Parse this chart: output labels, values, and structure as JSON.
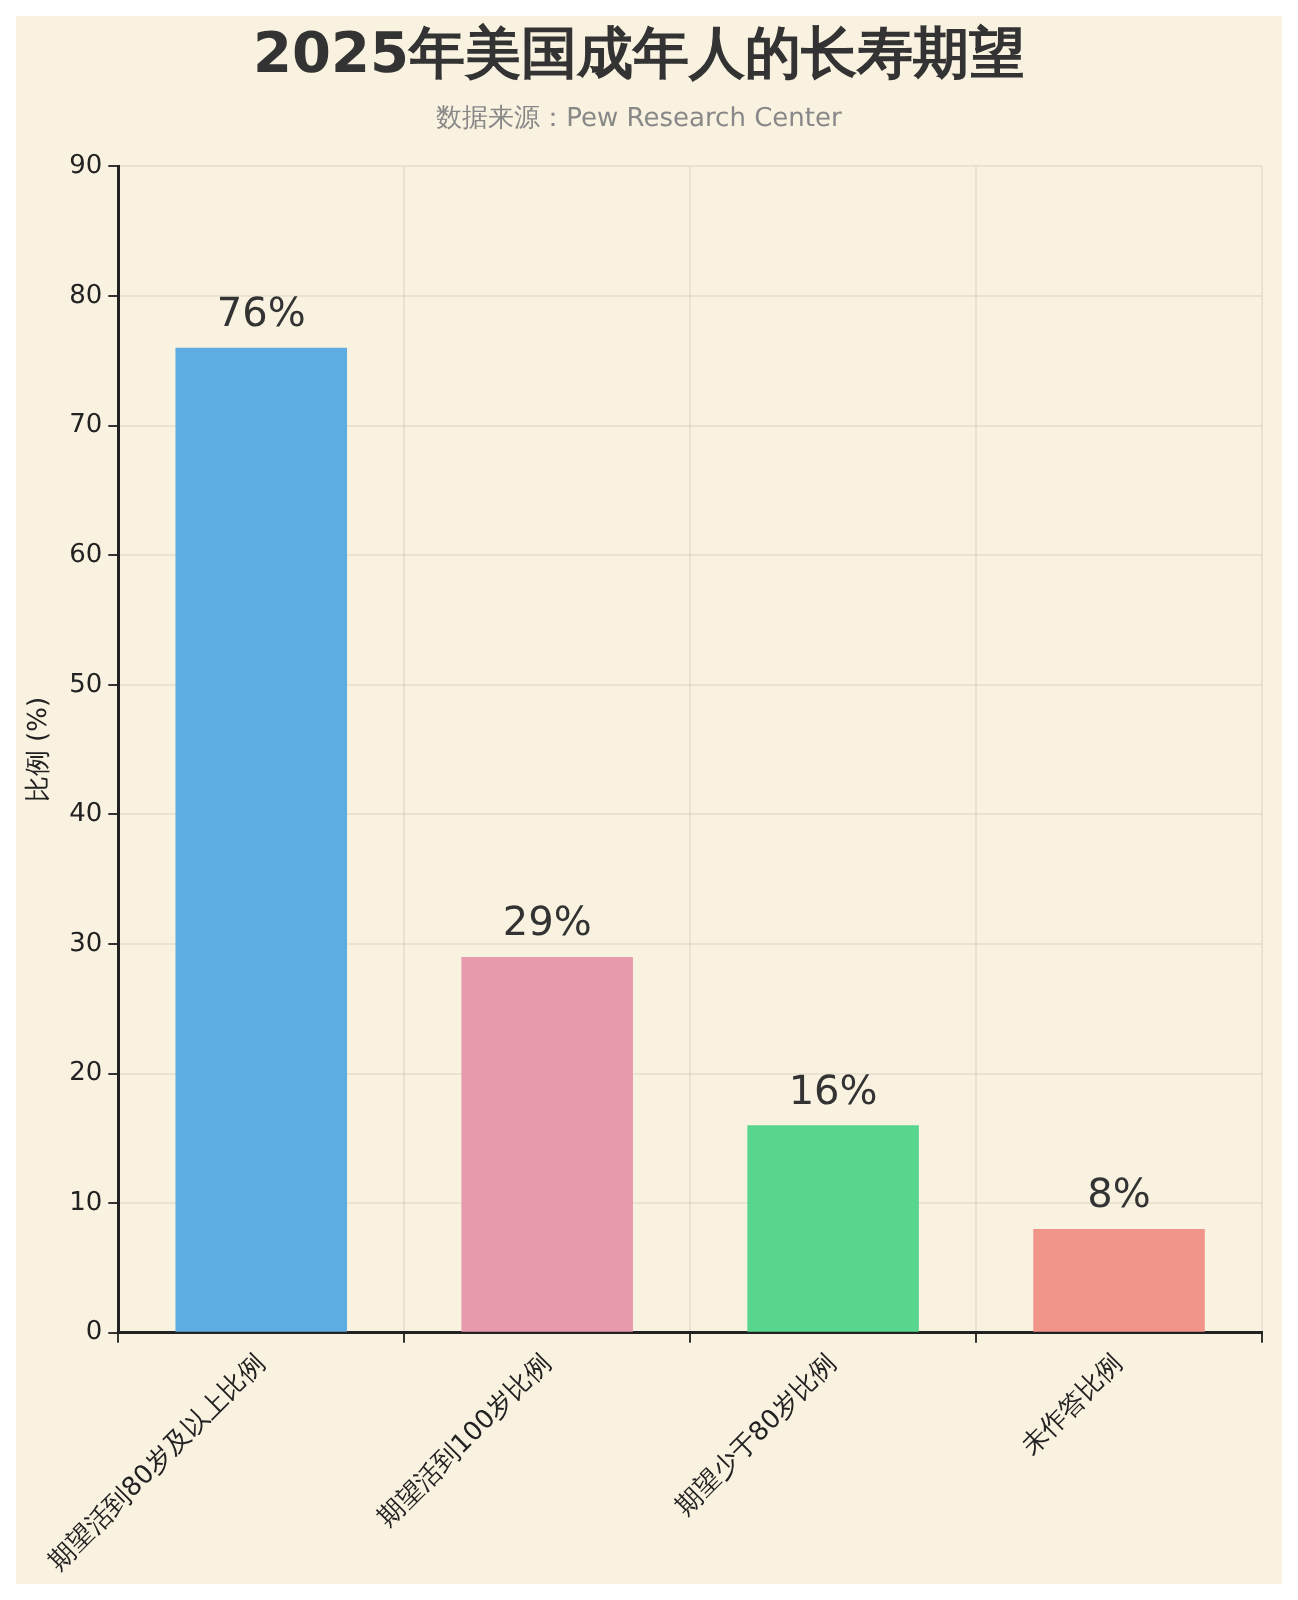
{
  "chart_data": {
    "type": "bar",
    "title": "2025年美国成年人的长寿期望",
    "subtitle": "数据来源：Pew Research Center",
    "ylabel": "比例 (%)",
    "categories": [
      "期望活到80岁及以上比例",
      "期望活到100岁比例",
      "期望少于80岁比例",
      "未作答比例"
    ],
    "values": [
      76,
      29,
      16,
      8
    ],
    "colors": [
      "#5dade2",
      "#e79aac",
      "#58d68d",
      "#f1948a"
    ],
    "value_labels": [
      "76%",
      "29%",
      "16%",
      "8%"
    ],
    "ylim": [
      0,
      90
    ],
    "yticks": [
      0,
      10,
      20,
      30,
      40,
      50,
      60,
      70,
      80,
      90
    ],
    "grid": true
  }
}
